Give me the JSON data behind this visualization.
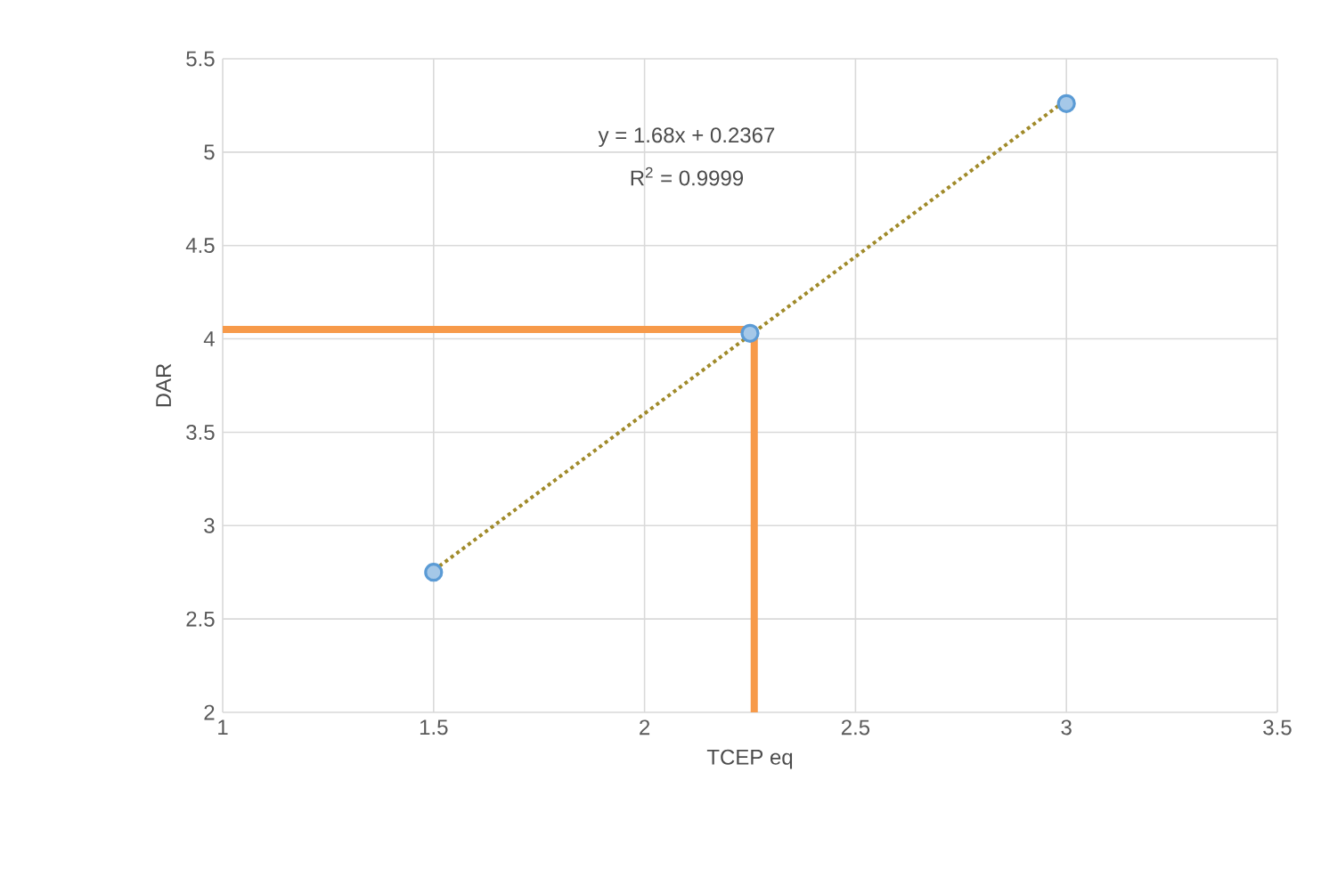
{
  "chart_data": {
    "type": "scatter",
    "xlabel": "TCEP eq",
    "ylabel": "DAR",
    "xlim": [
      1,
      3.5
    ],
    "xticks": [
      1,
      1.5,
      2,
      2.5,
      3,
      3.5
    ],
    "ylim": [
      2,
      5.5
    ],
    "yticks": [
      2,
      2.5,
      3,
      3.5,
      4,
      4.5,
      5,
      5.5
    ],
    "grid": true,
    "series": [
      {
        "type": "line",
        "color": "#a08a2a",
        "line_style": "dotted",
        "marker": "none",
        "x": [
          1.5,
          3
        ],
        "values": [
          2.76,
          5.28
        ]
      },
      {
        "type": "line",
        "color": "#f79a4a",
        "line_style": "solid",
        "marker": "none",
        "x": [
          1,
          2.26,
          2.26
        ],
        "values": [
          4.05,
          4.05,
          2
        ]
      },
      {
        "color": "#5b9bd5",
        "marker": "circle",
        "x": [
          1.5,
          2.25,
          3
        ],
        "values": [
          2.75,
          4.03,
          5.26
        ]
      }
    ],
    "annotations": [
      "y = 1.68x + 0.2367",
      "R$^{2}$ = 0.9999"
    ]
  }
}
